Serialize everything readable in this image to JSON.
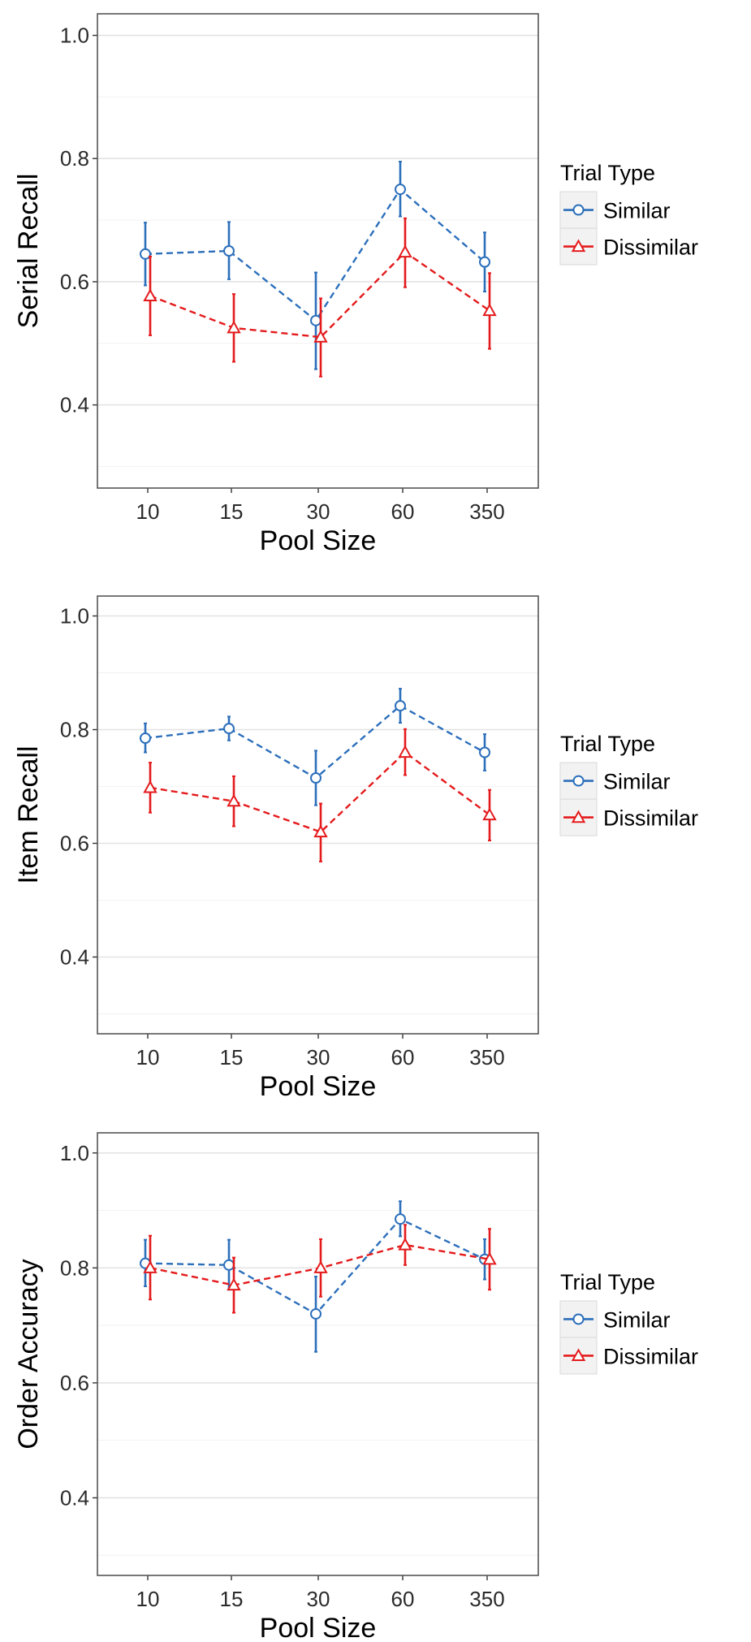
{
  "chart_data": [
    {
      "type": "line",
      "xlabel": "Pool Size",
      "ylabel": "Serial Recall",
      "categories": [
        "10",
        "15",
        "30",
        "60",
        "350"
      ],
      "ylim": [
        0.265,
        1.035
      ],
      "yticks": [
        "0.4",
        "0.6",
        "0.8",
        "1.0"
      ],
      "grid": true,
      "legend": {
        "title": "Trial Type",
        "position": "right"
      },
      "series": [
        {
          "name": "Similar",
          "color": "#2c6fbb",
          "marker": "circle",
          "linestyle": "dashed",
          "values": [
            0.645,
            0.65,
            0.537,
            0.75,
            0.632
          ],
          "err_low": [
            0.594,
            0.604,
            0.458,
            0.706,
            0.584
          ],
          "err_high": [
            0.696,
            0.697,
            0.615,
            0.795,
            0.68
          ]
        },
        {
          "name": "Dissimilar",
          "color": "#e41a1c",
          "marker": "triangle",
          "linestyle": "dashed",
          "values": [
            0.577,
            0.525,
            0.51,
            0.648,
            0.553
          ],
          "err_low": [
            0.513,
            0.47,
            0.446,
            0.591,
            0.491
          ],
          "err_high": [
            0.641,
            0.58,
            0.573,
            0.703,
            0.614
          ]
        }
      ]
    },
    {
      "type": "line",
      "xlabel": "Pool Size",
      "ylabel": "Item Recall",
      "categories": [
        "10",
        "15",
        "30",
        "60",
        "350"
      ],
      "ylim": [
        0.265,
        1.035
      ],
      "yticks": [
        "0.4",
        "0.6",
        "0.8",
        "1.0"
      ],
      "grid": true,
      "legend": {
        "title": "Trial Type",
        "position": "right"
      },
      "series": [
        {
          "name": "Similar",
          "color": "#2c6fbb",
          "marker": "circle",
          "linestyle": "dashed",
          "values": [
            0.785,
            0.802,
            0.715,
            0.842,
            0.76
          ],
          "err_low": [
            0.76,
            0.781,
            0.667,
            0.812,
            0.728
          ],
          "err_high": [
            0.811,
            0.823,
            0.763,
            0.872,
            0.792
          ]
        },
        {
          "name": "Dissimilar",
          "color": "#e41a1c",
          "marker": "triangle",
          "linestyle": "dashed",
          "values": [
            0.698,
            0.674,
            0.62,
            0.76,
            0.65
          ],
          "err_low": [
            0.654,
            0.63,
            0.568,
            0.72,
            0.605
          ],
          "err_high": [
            0.742,
            0.718,
            0.67,
            0.801,
            0.694
          ]
        }
      ]
    },
    {
      "type": "line",
      "xlabel": "Pool Size",
      "ylabel": "Order Accuracy",
      "categories": [
        "10",
        "15",
        "30",
        "60",
        "350"
      ],
      "ylim": [
        0.265,
        1.035
      ],
      "yticks": [
        "0.4",
        "0.6",
        "0.8",
        "1.0"
      ],
      "grid": true,
      "legend": {
        "title": "Trial Type",
        "position": "right"
      },
      "series": [
        {
          "name": "Similar",
          "color": "#2c6fbb",
          "marker": "circle",
          "linestyle": "dashed",
          "values": [
            0.808,
            0.805,
            0.72,
            0.885,
            0.815
          ],
          "err_low": [
            0.768,
            0.762,
            0.654,
            0.855,
            0.78
          ],
          "err_high": [
            0.849,
            0.849,
            0.785,
            0.916,
            0.85
          ]
        },
        {
          "name": "Dissimilar",
          "color": "#e41a1c",
          "marker": "triangle",
          "linestyle": "dashed",
          "values": [
            0.8,
            0.77,
            0.8,
            0.84,
            0.815
          ],
          "err_low": [
            0.745,
            0.722,
            0.75,
            0.805,
            0.762
          ],
          "err_high": [
            0.856,
            0.818,
            0.85,
            0.875,
            0.868
          ]
        }
      ]
    }
  ]
}
